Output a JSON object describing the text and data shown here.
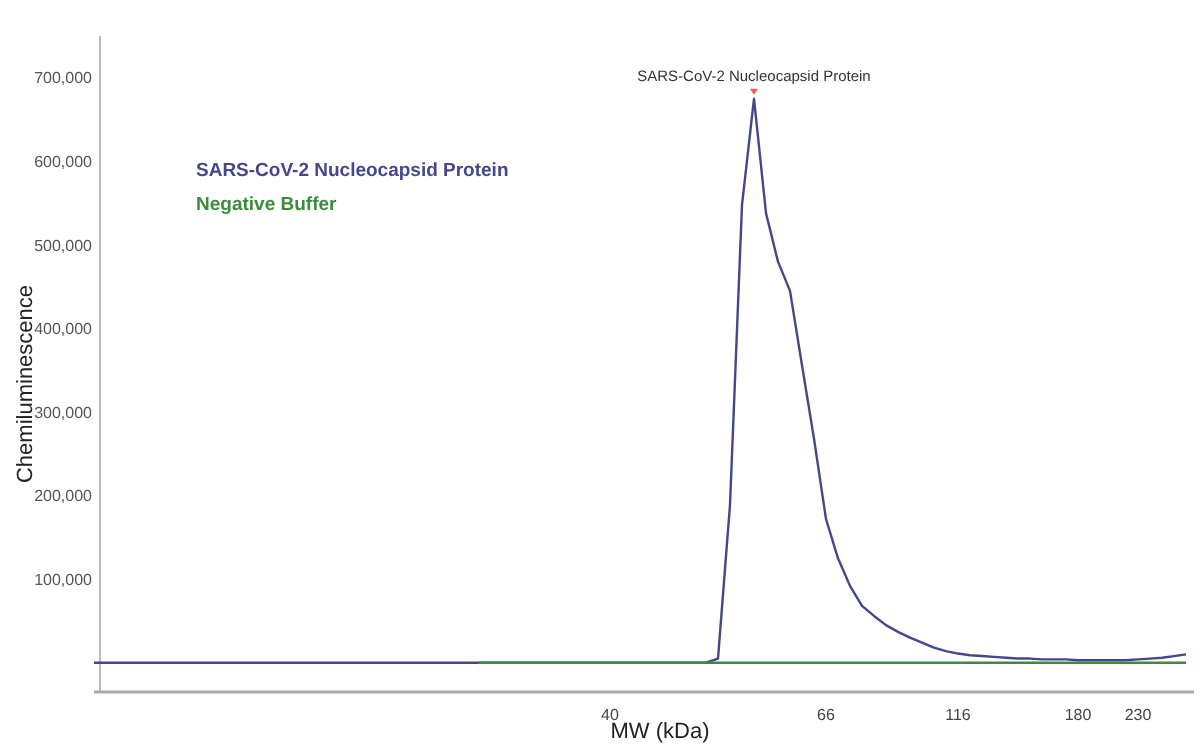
{
  "chart_data": {
    "type": "line",
    "xlabel": "MW (kDa)",
    "ylabel": "Chemiluminescence",
    "categories": [
      null,
      null,
      null,
      null,
      null,
      null,
      null,
      null,
      null,
      null,
      null,
      null,
      null,
      null,
      null,
      null,
      null,
      null,
      null,
      null,
      null,
      null,
      null,
      null,
      null,
      null,
      null,
      null,
      null,
      null,
      null,
      null,
      null,
      null,
      null,
      null,
      null,
      null,
      null,
      null,
      null,
      null,
      null,
      "40",
      null,
      null,
      null,
      null,
      null,
      null,
      null,
      null,
      null,
      null,
      null,
      null,
      null,
      null,
      null,
      null,
      null,
      "66",
      null,
      null,
      null,
      null,
      null,
      null,
      null,
      null,
      null,
      null,
      "116",
      null,
      null,
      null,
      null,
      null,
      null,
      null,
      null,
      null,
      "180",
      null,
      null,
      null,
      null,
      "230",
      null,
      null,
      null,
      null
    ],
    "series": [
      {
        "name": "SARS-CoV-2 Nucleocapsid Protein",
        "color": "#46468c",
        "values": [
          0,
          0,
          0,
          0,
          0,
          0,
          0,
          0,
          0,
          0,
          0,
          0,
          0,
          0,
          0,
          0,
          0,
          0,
          0,
          0,
          0,
          0,
          0,
          0,
          0,
          0,
          0,
          0,
          0,
          0,
          0,
          0,
          0,
          0,
          0,
          0,
          0,
          0,
          0,
          0,
          0,
          0,
          0,
          0,
          0,
          0,
          0,
          0,
          0,
          0,
          0,
          0,
          5000,
          189000,
          548000,
          675000,
          538000,
          480000,
          445000,
          356000,
          268000,
          172000,
          125000,
          92000,
          68000,
          56000,
          45000,
          37000,
          30000,
          24000,
          18000,
          14000,
          11000,
          9000,
          8000,
          7000,
          6000,
          5000,
          5000,
          4000,
          4000,
          4000,
          3000,
          3000,
          3000,
          3000,
          3000,
          4000,
          5000,
          6000,
          8000,
          10000
        ]
      },
      {
        "name": "Negative Buffer",
        "color": "#3c8c3c",
        "values": [
          null,
          null,
          null,
          null,
          null,
          null,
          null,
          null,
          null,
          null,
          null,
          null,
          null,
          null,
          null,
          null,
          null,
          null,
          null,
          null,
          null,
          null,
          null,
          null,
          null,
          null,
          null,
          null,
          null,
          null,
          null,
          null,
          0,
          0,
          0,
          0,
          0,
          0,
          0,
          0,
          0,
          0,
          0,
          0,
          0,
          0,
          0,
          0,
          0,
          0,
          0,
          0,
          0,
          0,
          0,
          0,
          0,
          0,
          0,
          0,
          0,
          0,
          0,
          0,
          0,
          0,
          0,
          0,
          0,
          0,
          0,
          0,
          0,
          0,
          0,
          0,
          0,
          0,
          0,
          0,
          0,
          0,
          0,
          0,
          0,
          0,
          0,
          0,
          0,
          0,
          0,
          0
        ]
      }
    ],
    "ylim": [
      -35000,
      750000
    ],
    "yticks": [
      {
        "value": 100000,
        "label": "100,000"
      },
      {
        "value": 200000,
        "label": "200,000"
      },
      {
        "value": 300000,
        "label": "300,000"
      },
      {
        "value": 400000,
        "label": "400,000"
      },
      {
        "value": 500000,
        "label": "500,000"
      },
      {
        "value": 600000,
        "label": "600,000"
      },
      {
        "value": 700000,
        "label": "700,000"
      }
    ],
    "annotations": [
      {
        "text": "SARS-CoV-2 Nucleocapsid Protein",
        "y": 675000
      }
    ],
    "legend": "top left",
    "grid": false,
    "marker": "none",
    "line_style": "solid"
  }
}
